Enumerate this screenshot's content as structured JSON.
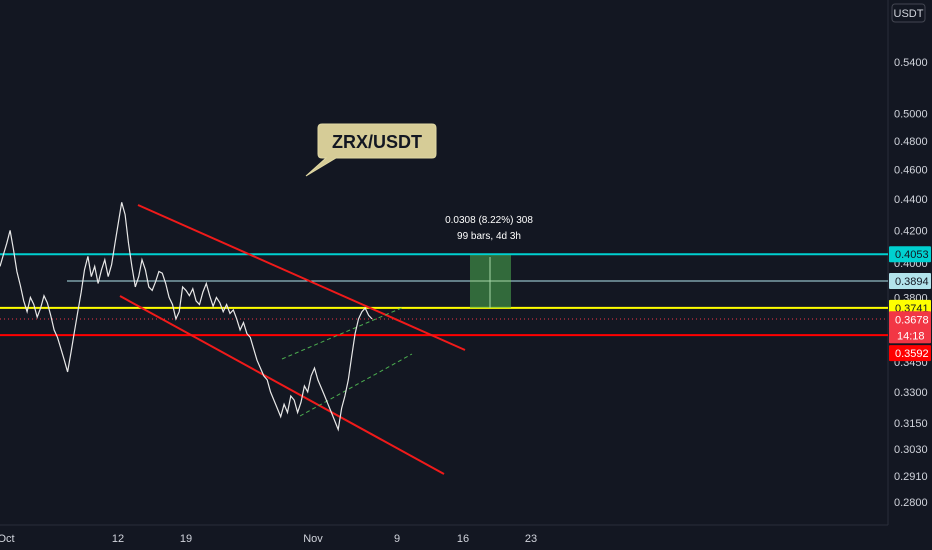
{
  "chart_data": {
    "type": "line",
    "symbol": "ZRX/USDT",
    "currency": "USDT",
    "y_scale": "log",
    "y_ticks": [
      "0.5400",
      "0.5000",
      "0.4800",
      "0.4600",
      "0.4400",
      "0.4200",
      "0.4000",
      "0.3800",
      "0.3450",
      "0.3300",
      "0.3150",
      "0.3030",
      "0.2910",
      "0.2800"
    ],
    "x_ticks": [
      "Oct",
      "12",
      "19",
      "Nov",
      "9",
      "16",
      "23"
    ],
    "price_levels": [
      {
        "value": "0.4053",
        "color": "#00d0d0"
      },
      {
        "value": "0.3894",
        "color": "#b2e4ec"
      },
      {
        "value": "0.3741",
        "color": "#ffff00"
      },
      {
        "value": "0.3592",
        "color": "#ff0000"
      }
    ],
    "last_price": {
      "value": "0.3678",
      "countdown": "14:18",
      "color": "#f23645"
    },
    "measure": {
      "change": "0.0308 (8.22%) 308",
      "span": "99 bars, 4d 3h"
    },
    "series": [
      {
        "values": [
          0.398,
          0.405,
          0.412,
          0.42,
          0.408,
          0.395,
          0.387,
          0.378,
          0.372,
          0.38,
          0.376,
          0.369,
          0.374,
          0.381,
          0.377,
          0.37,
          0.362,
          0.358,
          0.352,
          0.346,
          0.34,
          0.35,
          0.361,
          0.372,
          0.383,
          0.396,
          0.404,
          0.392,
          0.398,
          0.388,
          0.396,
          0.402,
          0.392,
          0.399,
          0.412,
          0.425,
          0.438,
          0.43,
          0.412,
          0.398,
          0.386,
          0.392,
          0.402,
          0.396,
          0.386,
          0.384,
          0.389,
          0.395,
          0.394,
          0.388,
          0.38,
          0.376,
          0.368,
          0.372,
          0.386,
          0.384,
          0.381,
          0.385,
          0.378,
          0.376,
          0.383,
          0.388,
          0.381,
          0.375,
          0.38,
          0.377,
          0.372,
          0.376,
          0.371,
          0.373,
          0.368,
          0.362,
          0.366,
          0.36,
          0.358,
          0.352,
          0.346,
          0.342,
          0.338,
          0.336,
          0.33,
          0.326,
          0.322,
          0.318,
          0.324,
          0.32,
          0.328,
          0.326,
          0.32,
          0.325,
          0.333,
          0.33,
          0.338,
          0.342,
          0.336,
          0.332,
          0.328,
          0.324,
          0.32,
          0.316,
          0.312,
          0.322,
          0.328,
          0.336,
          0.348,
          0.36,
          0.368,
          0.372,
          0.374,
          0.37,
          0.368
        ]
      }
    ],
    "annotations": [
      {
        "text": "ZRX/USDT"
      }
    ]
  }
}
